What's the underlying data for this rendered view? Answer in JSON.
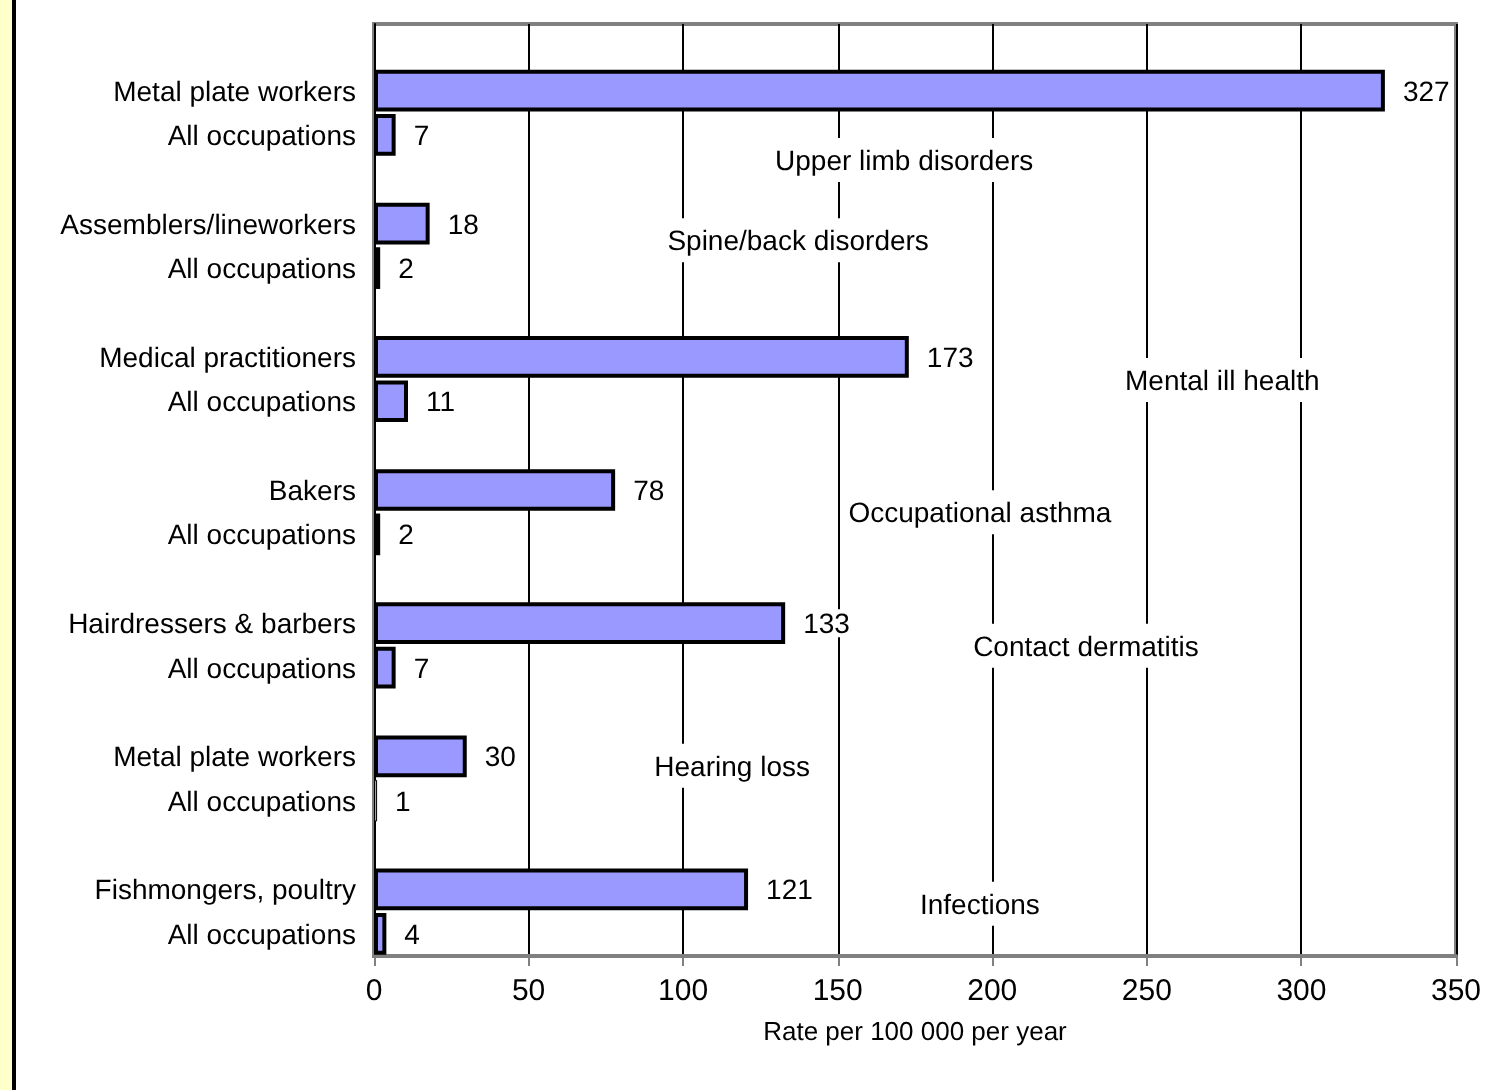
{
  "chart_data": {
    "type": "bar",
    "orientation": "horizontal",
    "categories": [
      null,
      "Metal plate workers",
      "All occupations",
      null,
      "Assemblers/lineworkers",
      "All occupations",
      null,
      "Medical practitioners",
      "All occupations",
      null,
      "Bakers",
      "All occupations",
      null,
      "Hairdressers & barbers",
      "All occupations",
      null,
      "Metal plate workers",
      "All occupations",
      null,
      "Fishmongers, poultry",
      "All occupations"
    ],
    "values": [
      null,
      327,
      7,
      null,
      18,
      2,
      null,
      173,
      11,
      null,
      78,
      2,
      null,
      133,
      7,
      null,
      30,
      1,
      null,
      121,
      4
    ],
    "color": "#9999ff",
    "data_labels": true,
    "xlabel": "Rate per 100 000 per year",
    "xlim": [
      0,
      350
    ],
    "xticks": [
      0,
      50,
      100,
      150,
      200,
      250,
      300,
      350
    ],
    "grid": "x",
    "annotations": [
      "Upper limb disorders",
      "Spine/back disorders",
      "Mental ill health",
      "Occupational asthma",
      "Contact dermatitis",
      "Hearing loss",
      "Infections"
    ]
  }
}
